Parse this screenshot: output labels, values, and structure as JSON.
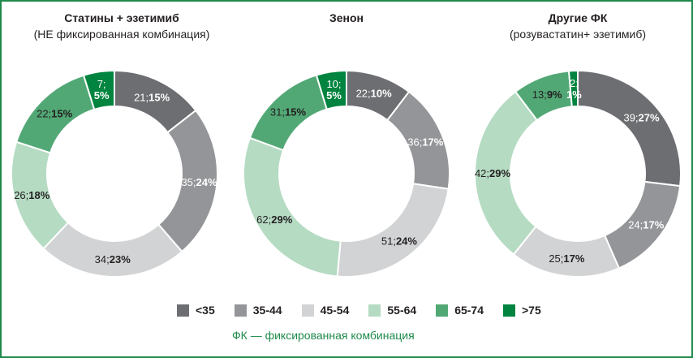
{
  "chart_data": [
    {
      "type": "pie",
      "title": "Статины + эзетимиб",
      "subtitle": "(НЕ фиксированная комбинация)",
      "categories": [
        "<35",
        "35-44",
        "45-54",
        "55-64",
        "65-74",
        ">75"
      ],
      "values": [
        21,
        35,
        34,
        26,
        22,
        7
      ],
      "percents": [
        15,
        24,
        23,
        18,
        15,
        5
      ]
    },
    {
      "type": "pie",
      "title": "Зенон",
      "subtitle": "",
      "categories": [
        "<35",
        "35-44",
        "45-54",
        "55-64",
        "65-74",
        ">75"
      ],
      "values": [
        22,
        36,
        51,
        62,
        31,
        10
      ],
      "percents": [
        10,
        17,
        24,
        29,
        15,
        5
      ]
    },
    {
      "type": "pie",
      "title": "Другие ФК",
      "subtitle": "(розувастатин+ эзетимиб)",
      "categories": [
        "<35",
        "35-44",
        "45-54",
        "55-64",
        "65-74",
        ">75"
      ],
      "values": [
        39,
        24,
        25,
        42,
        13,
        2
      ],
      "percents": [
        27,
        17,
        17,
        29,
        9,
        1
      ]
    }
  ],
  "legend": {
    "items": [
      {
        "label": "<35",
        "color": "#6d6e71"
      },
      {
        "label": "35-44",
        "color": "#939598"
      },
      {
        "label": "45-54",
        "color": "#d1d3d4"
      },
      {
        "label": "55-64",
        "color": "#b5dbc3"
      },
      {
        "label": "65-74",
        "color": "#52a875"
      },
      {
        "label": ">75",
        "color": "#00843f"
      }
    ]
  },
  "note": "ФК — фиксированная комбинация"
}
